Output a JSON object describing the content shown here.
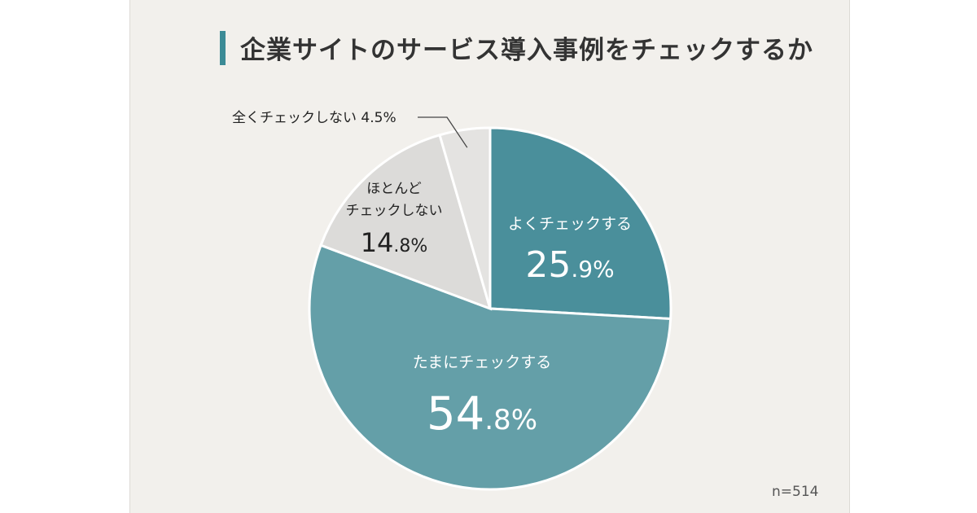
{
  "title": "企業サイトのサービス導入事例をチェックするか",
  "sample_size": "n=514",
  "chart_data": {
    "type": "pie",
    "title": "企業サイトのサービス導入事例をチェックするか",
    "slices": [
      {
        "label": "よくチェックする",
        "value": 25.9,
        "int_part": "25",
        "dec_part": ".9%",
        "color": "#4a8f9b",
        "text_color": "#ffffff"
      },
      {
        "label": "たまにチェックする",
        "value": 54.8,
        "int_part": "54",
        "dec_part": ".8%",
        "color": "#649fa8",
        "text_color": "#ffffff"
      },
      {
        "label": "ほとんど\nチェックしない",
        "value": 14.8,
        "int_part": "14",
        "dec_part": ".8%",
        "color": "#dcdbd9",
        "text_color": "#222222"
      },
      {
        "label": "全くチェックしない 4.5%",
        "value": 4.5,
        "color": "#e4e3e1",
        "text_color": "#222222"
      }
    ]
  }
}
